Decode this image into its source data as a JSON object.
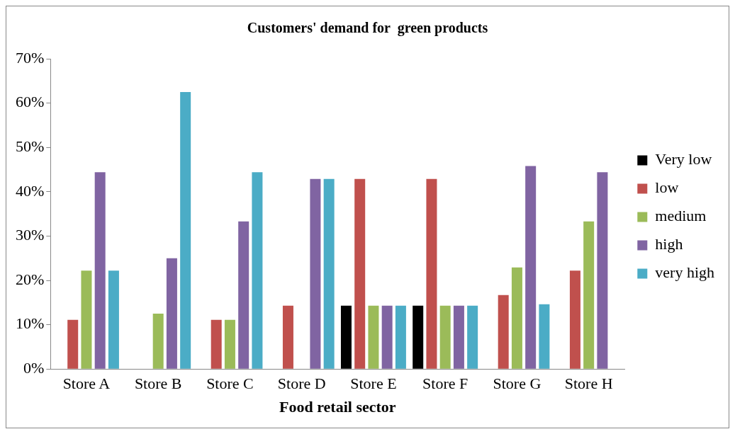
{
  "chart_data": {
    "type": "bar",
    "title": "Customers' demand for  green products",
    "xlabel": "Food retail sector",
    "categories": [
      "Store A",
      "Store B",
      "Store C",
      "Store D",
      "Store E",
      "Store F",
      "Store G",
      "Store H"
    ],
    "series": [
      {
        "name": "Very low",
        "color": "#000000",
        "values": [
          0,
          0,
          0,
          0,
          14.3,
          14.3,
          0,
          0
        ]
      },
      {
        "name": "low",
        "color": "#c0504d",
        "values": [
          11.1,
          0,
          11.1,
          14.3,
          42.9,
          42.9,
          16.7,
          22.2
        ]
      },
      {
        "name": "medium",
        "color": "#9bbb59",
        "values": [
          22.2,
          12.5,
          11.1,
          0,
          14.3,
          14.3,
          22.9,
          33.3
        ]
      },
      {
        "name": "high",
        "color": "#8064a2",
        "values": [
          44.4,
          25,
          33.3,
          42.9,
          14.3,
          14.3,
          45.8,
          44.4
        ]
      },
      {
        "name": "very high",
        "color": "#4bacc6",
        "values": [
          22.2,
          62.5,
          44.4,
          42.9,
          14.3,
          14.3,
          14.6,
          0
        ]
      }
    ],
    "ylim": [
      0,
      70
    ],
    "yticks": [
      {
        "value": 0,
        "label": "0%"
      },
      {
        "value": 10,
        "label": "10%"
      },
      {
        "value": 20,
        "label": "20%"
      },
      {
        "value": 30,
        "label": "30%"
      },
      {
        "value": 40,
        "label": "40%"
      },
      {
        "value": 50,
        "label": "50%"
      },
      {
        "value": 60,
        "label": "60%"
      },
      {
        "value": 70,
        "label": "70%"
      }
    ],
    "grid": false,
    "legend": "right"
  }
}
